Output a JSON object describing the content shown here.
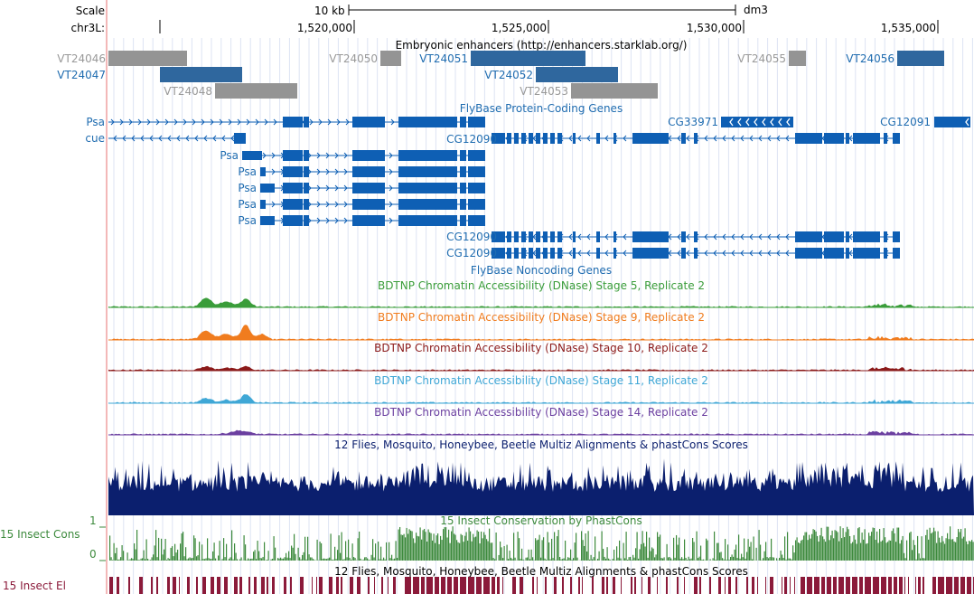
{
  "header": {
    "scale_label": "Scale",
    "chrom_label": "chr3L:",
    "scale_bar_label": "10 kb",
    "assembly": "dm3",
    "ticks": [
      "1,520,000",
      "1,525,000",
      "1,530,000",
      "1,535,000"
    ]
  },
  "tracks": {
    "enhancers": {
      "title": "Embryonic enhancers (http://enhancers.starklab.org/)",
      "items": [
        {
          "id": "VT24046",
          "style": "gray"
        },
        {
          "id": "VT24047",
          "style": "blue"
        },
        {
          "id": "VT24048",
          "style": "gray"
        },
        {
          "id": "VT24050",
          "style": "gray"
        },
        {
          "id": "VT24051",
          "style": "blue"
        },
        {
          "id": "VT24052",
          "style": "blue"
        },
        {
          "id": "VT24053",
          "style": "gray"
        },
        {
          "id": "VT24055",
          "style": "gray"
        },
        {
          "id": "VT24056",
          "style": "blue"
        }
      ]
    },
    "protein_coding": {
      "title": "FlyBase Protein-Coding Genes",
      "labels": {
        "psa": "Psa",
        "cue": "cue",
        "cg12090": "CG12090",
        "cg33971": "CG33971",
        "cg12091": "CG12091"
      }
    },
    "noncoding": {
      "title": "FlyBase Noncoding Genes"
    },
    "dnase": [
      {
        "title": "BDTNP Chromatin Accessibility (DNase) Stage 5, Replicate 2",
        "color": "#3a9d3a"
      },
      {
        "title": "BDTNP Chromatin Accessibility (DNase) Stage 9, Replicate 2",
        "color": "#f07c1e"
      },
      {
        "title": "BDTNP Chromatin Accessibility (DNase) Stage 10, Replicate 2",
        "color": "#8b1a1a"
      },
      {
        "title": "BDTNP Chromatin Accessibility (DNase) Stage 11, Replicate 2",
        "color": "#3fa7d6"
      },
      {
        "title": "BDTNP Chromatin Accessibility (DNase) Stage 14, Replicate 2",
        "color": "#6b3fa0"
      }
    ],
    "multiz": {
      "title": "12 Flies, Mosquito, Honeybee, Beetle Multiz Alignments & phastCons Scores",
      "color": "#0b1f6e"
    },
    "cons": {
      "title": "15 Insect Conservation by PhastCons",
      "side_label": "15 Insect Cons",
      "axis_max": "1",
      "axis_min": "0",
      "color": "#3d8a3d"
    },
    "elements": {
      "title": "12 Flies, Mosquito, Honeybee, Beetle Multiz Alignments & phastCons Scores",
      "side_label": "15 Insect El",
      "color": "#8b1a3a"
    }
  }
}
